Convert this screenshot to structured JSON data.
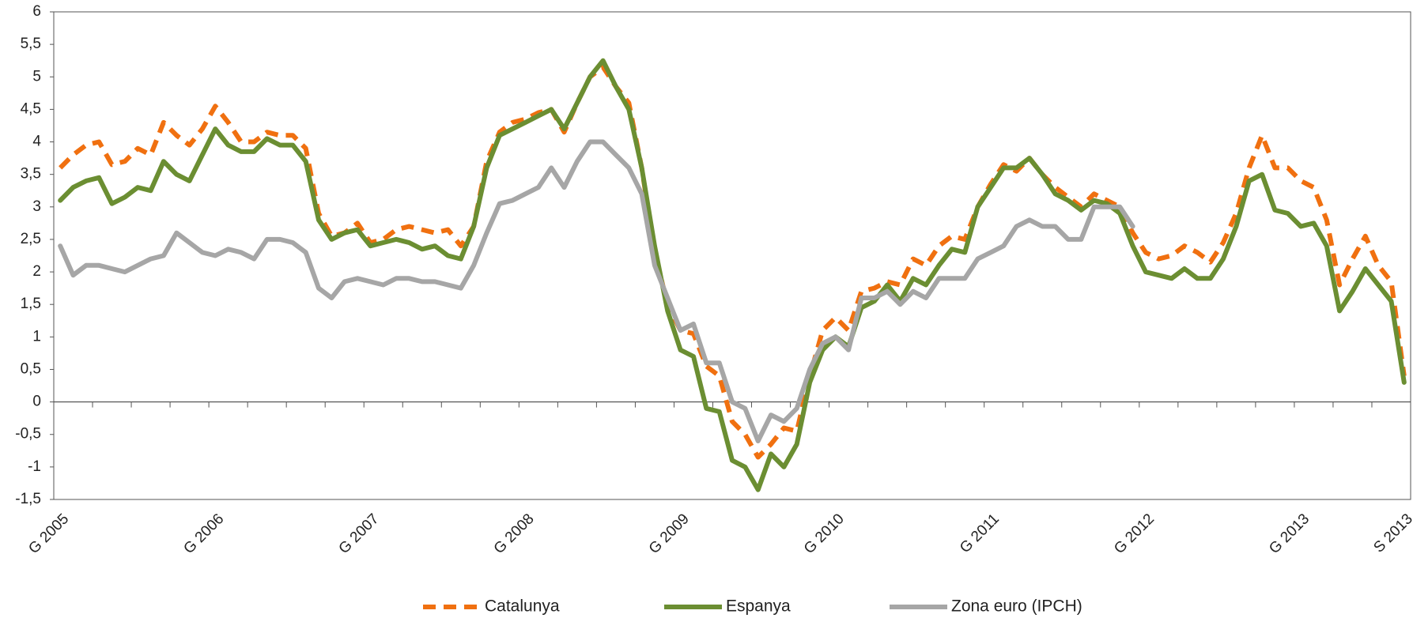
{
  "chart_data": {
    "type": "line",
    "categories": [
      "G 2005",
      null,
      null,
      null,
      null,
      null,
      null,
      null,
      null,
      null,
      null,
      null,
      "G 2006",
      null,
      null,
      null,
      null,
      null,
      null,
      null,
      null,
      null,
      null,
      null,
      "G 2007",
      null,
      null,
      null,
      null,
      null,
      null,
      null,
      null,
      null,
      null,
      null,
      "G 2008",
      null,
      null,
      null,
      null,
      null,
      null,
      null,
      null,
      null,
      null,
      null,
      "G 2009",
      null,
      null,
      null,
      null,
      null,
      null,
      null,
      null,
      null,
      null,
      null,
      "G 2010",
      null,
      null,
      null,
      null,
      null,
      null,
      null,
      null,
      null,
      null,
      null,
      "G 2011",
      null,
      null,
      null,
      null,
      null,
      null,
      null,
      null,
      null,
      null,
      null,
      "G 2012",
      null,
      null,
      null,
      null,
      null,
      null,
      null,
      null,
      null,
      null,
      null,
      "G 2013",
      null,
      null,
      null,
      null,
      null,
      null,
      null,
      "S 2013"
    ],
    "series": [
      {
        "name": "Catalunya",
        "color": "#f07010",
        "dashed": true,
        "values": [
          3.6,
          3.8,
          3.95,
          4.0,
          3.65,
          3.7,
          3.9,
          3.8,
          4.3,
          4.1,
          3.95,
          4.2,
          4.55,
          4.3,
          4.0,
          4.0,
          4.15,
          4.1,
          4.1,
          3.9,
          2.9,
          2.55,
          2.6,
          2.75,
          2.45,
          2.5,
          2.65,
          2.7,
          2.65,
          2.6,
          2.65,
          2.4,
          2.7,
          3.7,
          4.15,
          4.3,
          4.35,
          4.45,
          4.5,
          4.15,
          4.6,
          5.0,
          5.15,
          4.85,
          4.6,
          3.6,
          2.3,
          1.5,
          1.1,
          1.05,
          0.55,
          0.4,
          -0.3,
          -0.5,
          -0.85,
          -0.65,
          -0.4,
          -0.45,
          0.4,
          1.1,
          1.3,
          1.1,
          1.7,
          1.75,
          1.85,
          1.8,
          2.2,
          2.1,
          2.4,
          2.55,
          2.5,
          3.0,
          3.35,
          3.65,
          3.55,
          3.75,
          3.5,
          3.3,
          3.15,
          3.0,
          3.2,
          3.1,
          3.0,
          2.6,
          2.3,
          2.2,
          2.25,
          2.4,
          2.3,
          2.15,
          2.45,
          2.9,
          3.6,
          4.1,
          3.6,
          3.6,
          3.4,
          3.3,
          2.8,
          1.8,
          2.2,
          2.55,
          2.1,
          1.85,
          0.4
        ]
      },
      {
        "name": "Espanya",
        "color": "#6b8e32",
        "values": [
          3.1,
          3.3,
          3.4,
          3.45,
          3.05,
          3.15,
          3.3,
          3.25,
          3.7,
          3.5,
          3.4,
          3.8,
          4.2,
          3.95,
          3.85,
          3.85,
          4.05,
          3.95,
          3.95,
          3.7,
          2.8,
          2.5,
          2.6,
          2.65,
          2.4,
          2.45,
          2.5,
          2.45,
          2.35,
          2.4,
          2.25,
          2.2,
          2.7,
          3.6,
          4.1,
          4.2,
          4.3,
          4.4,
          4.5,
          4.2,
          4.6,
          5.0,
          5.25,
          4.85,
          4.5,
          3.6,
          2.4,
          1.4,
          0.8,
          0.7,
          -0.1,
          -0.15,
          -0.9,
          -1.0,
          -1.35,
          -0.8,
          -1.0,
          -0.65,
          0.3,
          0.8,
          1.0,
          0.85,
          1.45,
          1.55,
          1.8,
          1.55,
          1.9,
          1.8,
          2.1,
          2.35,
          2.3,
          3.0,
          3.3,
          3.6,
          3.6,
          3.75,
          3.5,
          3.2,
          3.1,
          2.95,
          3.1,
          3.05,
          2.9,
          2.4,
          2.0,
          1.95,
          1.9,
          2.05,
          1.9,
          1.9,
          2.2,
          2.7,
          3.4,
          3.5,
          2.95,
          2.9,
          2.7,
          2.75,
          2.4,
          1.4,
          1.7,
          2.05,
          1.8,
          1.55,
          0.3
        ]
      },
      {
        "name": "Zona euro (IPCH)",
        "color": "#a6a6a6",
        "values": [
          2.4,
          1.95,
          2.1,
          2.1,
          2.05,
          2.0,
          2.1,
          2.2,
          2.25,
          2.6,
          2.45,
          2.3,
          2.25,
          2.35,
          2.3,
          2.2,
          2.5,
          2.5,
          2.45,
          2.3,
          1.75,
          1.6,
          1.85,
          1.9,
          1.85,
          1.8,
          1.9,
          1.9,
          1.85,
          1.85,
          1.8,
          1.75,
          2.1,
          2.6,
          3.05,
          3.1,
          3.2,
          3.3,
          3.6,
          3.3,
          3.7,
          4.0,
          4.0,
          3.8,
          3.6,
          3.2,
          2.1,
          1.6,
          1.1,
          1.2,
          0.6,
          0.6,
          0.0,
          -0.1,
          -0.6,
          -0.2,
          -0.3,
          -0.1,
          0.5,
          0.9,
          1.0,
          0.8,
          1.6,
          1.6,
          1.7,
          1.5,
          1.7,
          1.6,
          1.9,
          1.9,
          1.9,
          2.2,
          2.3,
          2.4,
          2.7,
          2.8,
          2.7,
          2.7,
          2.5,
          2.5,
          3.0,
          3.0,
          3.0,
          2.7,
          null,
          null,
          null,
          null,
          null,
          null,
          null,
          null,
          null,
          null,
          null,
          null,
          null,
          null,
          null,
          null,
          null,
          null,
          null,
          null,
          null
        ]
      }
    ],
    "ylim": [
      -1.5,
      6
    ],
    "yticks": [
      {
        "value": -1.5,
        "label": "-1,5"
      },
      -1,
      {
        "value": -0.5,
        "label": "-0,5"
      },
      0,
      {
        "value": 0.5,
        "label": "0,5"
      },
      1,
      {
        "value": 1.5,
        "label": "1,5"
      },
      2,
      {
        "value": 2.5,
        "label": "2,5"
      },
      3,
      {
        "value": 3.5,
        "label": "3,5"
      },
      4,
      {
        "value": 4.5,
        "label": "4,5"
      },
      5,
      {
        "value": 5.5,
        "label": "5,5"
      },
      6
    ],
    "grid": false,
    "legend": "bottom"
  }
}
